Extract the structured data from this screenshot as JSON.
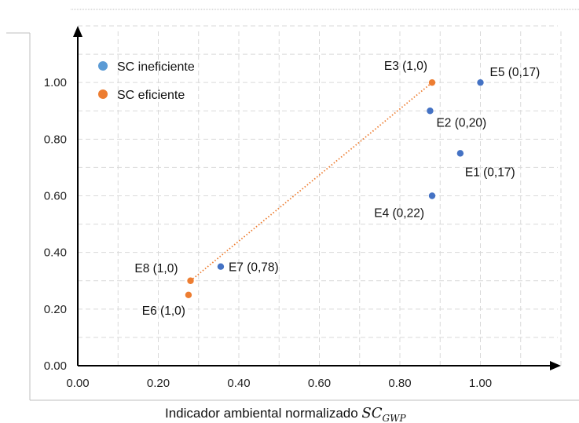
{
  "chart_data": {
    "type": "scatter",
    "xlim": [
      0,
      1.2
    ],
    "ylim": [
      0,
      1.2
    ],
    "x_ticks": [
      "0.00",
      "0.20",
      "0.40",
      "0.60",
      "0.80",
      "1.00"
    ],
    "y_ticks": [
      "0.00",
      "0.20",
      "0.40",
      "0.60",
      "0.80",
      "1.00"
    ],
    "grid": true,
    "legend_position": "top-left",
    "xlabel": {
      "prefix": "Indicador ambiental normalizado ",
      "symbol": "SC",
      "subscript": "GWP"
    },
    "ylabel": "",
    "series": [
      {
        "name": "SC ineficiente",
        "color": "#4472C4",
        "legend_color": "#5B9BD5",
        "points": [
          {
            "label": "E5 (0,17)",
            "x": 1.0,
            "y": 1.0
          },
          {
            "label": "E2 (0,20)",
            "x": 0.875,
            "y": 0.9
          },
          {
            "label": "E1 (0,17)",
            "x": 0.95,
            "y": 0.75
          },
          {
            "label": "E4 (0,22)",
            "x": 0.88,
            "y": 0.6
          },
          {
            "label": "E7 (0,78)",
            "x": 0.355,
            "y": 0.35
          }
        ]
      },
      {
        "name": "SC eficiente",
        "color": "#ED7D31",
        "legend_color": "#ED7D31",
        "points": [
          {
            "label": "E3 (1,0)",
            "x": 0.88,
            "y": 1.0
          },
          {
            "label": "E8 (1,0)",
            "x": 0.28,
            "y": 0.3
          },
          {
            "label": "E6 (1,0)",
            "x": 0.275,
            "y": 0.25
          }
        ]
      }
    ],
    "frontier_line": {
      "from": [
        0.28,
        0.3
      ],
      "to": [
        0.88,
        1.0
      ],
      "color": "#ED7D31",
      "style": "dotted"
    }
  }
}
